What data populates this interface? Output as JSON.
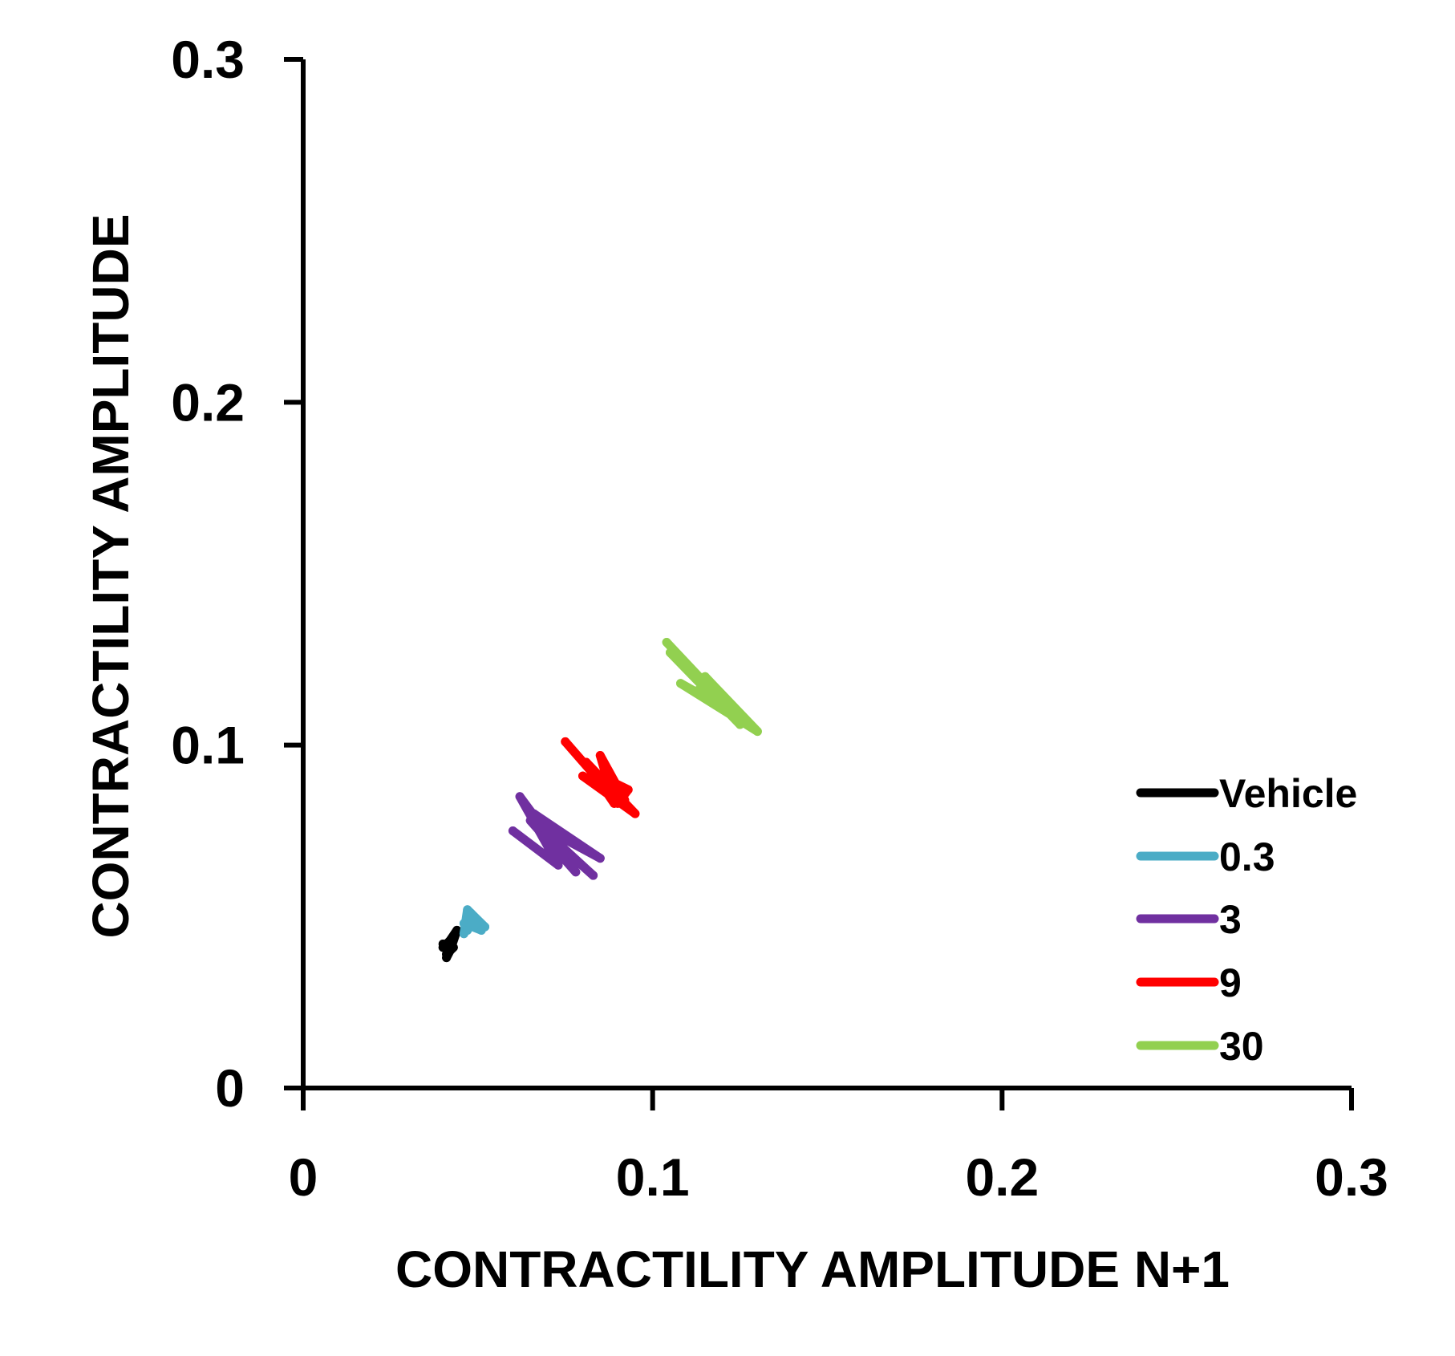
{
  "chart_data": {
    "type": "line",
    "title": "",
    "xlabel": "CONTRACTILITY AMPLITUDE N+1",
    "ylabel": "CONTRACTILITY AMPLITUDE",
    "xlim": [
      0,
      0.3
    ],
    "ylim": [
      0,
      0.3
    ],
    "xticks": [
      0,
      0.1,
      0.2,
      0.3
    ],
    "xtick_labels": [
      "0",
      "0.1",
      "0.2",
      "0.3"
    ],
    "yticks": [
      0,
      0.1,
      0.2,
      0.3
    ],
    "ytick_labels": [
      "0",
      "0.1",
      "0.2",
      "0.3"
    ],
    "grid": false,
    "legend_position": "bottom-right",
    "series": [
      {
        "name": "Vehicle",
        "color": "#000000",
        "points": [
          [
            0.04,
            0.042
          ],
          [
            0.043,
            0.041
          ],
          [
            0.041,
            0.039
          ],
          [
            0.042,
            0.043
          ],
          [
            0.044,
            0.046
          ],
          [
            0.042,
            0.04
          ],
          [
            0.041,
            0.038
          ],
          [
            0.043,
            0.044
          ],
          [
            0.04,
            0.041
          ]
        ]
      },
      {
        "name": "0.3",
        "color": "#4BACC6",
        "points": [
          [
            0.046,
            0.045
          ],
          [
            0.047,
            0.052
          ],
          [
            0.052,
            0.047
          ],
          [
            0.046,
            0.048
          ],
          [
            0.051,
            0.046
          ],
          [
            0.048,
            0.051
          ],
          [
            0.047,
            0.046
          ]
        ]
      },
      {
        "name": "3",
        "color": "#7030A0",
        "points": [
          [
            0.06,
            0.075
          ],
          [
            0.073,
            0.065
          ],
          [
            0.062,
            0.085
          ],
          [
            0.078,
            0.063
          ],
          [
            0.065,
            0.078
          ],
          [
            0.085,
            0.067
          ],
          [
            0.066,
            0.08
          ],
          [
            0.075,
            0.068
          ],
          [
            0.072,
            0.072
          ],
          [
            0.083,
            0.062
          ],
          [
            0.068,
            0.076
          ]
        ]
      },
      {
        "name": "9",
        "color": "#FF0000",
        "points": [
          [
            0.075,
            0.101
          ],
          [
            0.087,
            0.087
          ],
          [
            0.081,
            0.095
          ],
          [
            0.095,
            0.08
          ],
          [
            0.08,
            0.091
          ],
          [
            0.092,
            0.084
          ],
          [
            0.085,
            0.097
          ],
          [
            0.089,
            0.083
          ],
          [
            0.083,
            0.092
          ],
          [
            0.093,
            0.087
          ],
          [
            0.09,
            0.083
          ]
        ]
      },
      {
        "name": "30",
        "color": "#92D050",
        "points": [
          [
            0.104,
            0.13
          ],
          [
            0.116,
            0.117
          ],
          [
            0.105,
            0.127
          ],
          [
            0.125,
            0.106
          ],
          [
            0.11,
            0.123
          ],
          [
            0.122,
            0.11
          ],
          [
            0.108,
            0.118
          ],
          [
            0.13,
            0.104
          ],
          [
            0.115,
            0.12
          ],
          [
            0.12,
            0.112
          ],
          [
            0.113,
            0.116
          ]
        ]
      }
    ]
  }
}
